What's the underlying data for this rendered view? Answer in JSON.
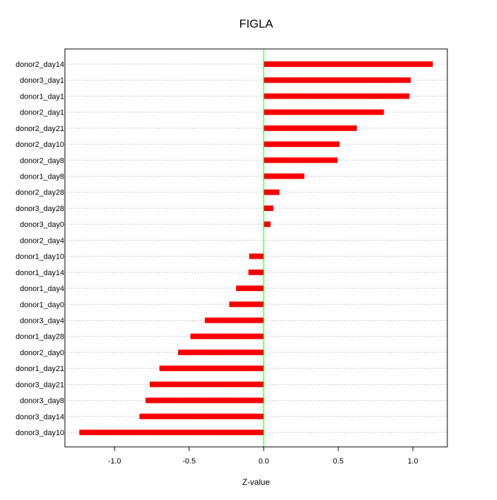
{
  "chart_data": {
    "type": "bar",
    "orientation": "horizontal",
    "title": "FIGLA",
    "xlabel": "Z-value",
    "ylabel": "",
    "xlim": [
      -1.333,
      1.231
    ],
    "xticks": [
      -1.0,
      -0.5,
      0.0,
      0.5,
      1.0
    ],
    "xtick_labels": [
      "-1.0",
      "-0.5",
      "0.0",
      "0.5",
      "1.0"
    ],
    "grid": "horizontal dotted",
    "bar_color": "#ff0000",
    "zero_line_color": "#00ff00",
    "categories": [
      "donor2_day14",
      "donor3_day1",
      "donor1_day1",
      "donor2_day1",
      "donor2_day21",
      "donor2_day10",
      "donor2_day8",
      "donor1_day8",
      "donor2_day28",
      "donor3_day28",
      "donor3_day0",
      "donor2_day4",
      "donor1_day10",
      "donor1_day14",
      "donor1_day4",
      "donor1_day0",
      "donor3_day4",
      "donor1_day28",
      "donor2_day0",
      "donor1_day21",
      "donor3_day21",
      "donor3_day8",
      "donor3_day14",
      "donor3_day10"
    ],
    "values": [
      1.134,
      0.986,
      0.977,
      0.806,
      0.625,
      0.509,
      0.495,
      0.273,
      0.106,
      0.065,
      0.046,
      0.0,
      -0.097,
      -0.102,
      -0.185,
      -0.231,
      -0.394,
      -0.491,
      -0.574,
      -0.699,
      -0.764,
      -0.792,
      -0.833,
      -1.236
    ]
  }
}
